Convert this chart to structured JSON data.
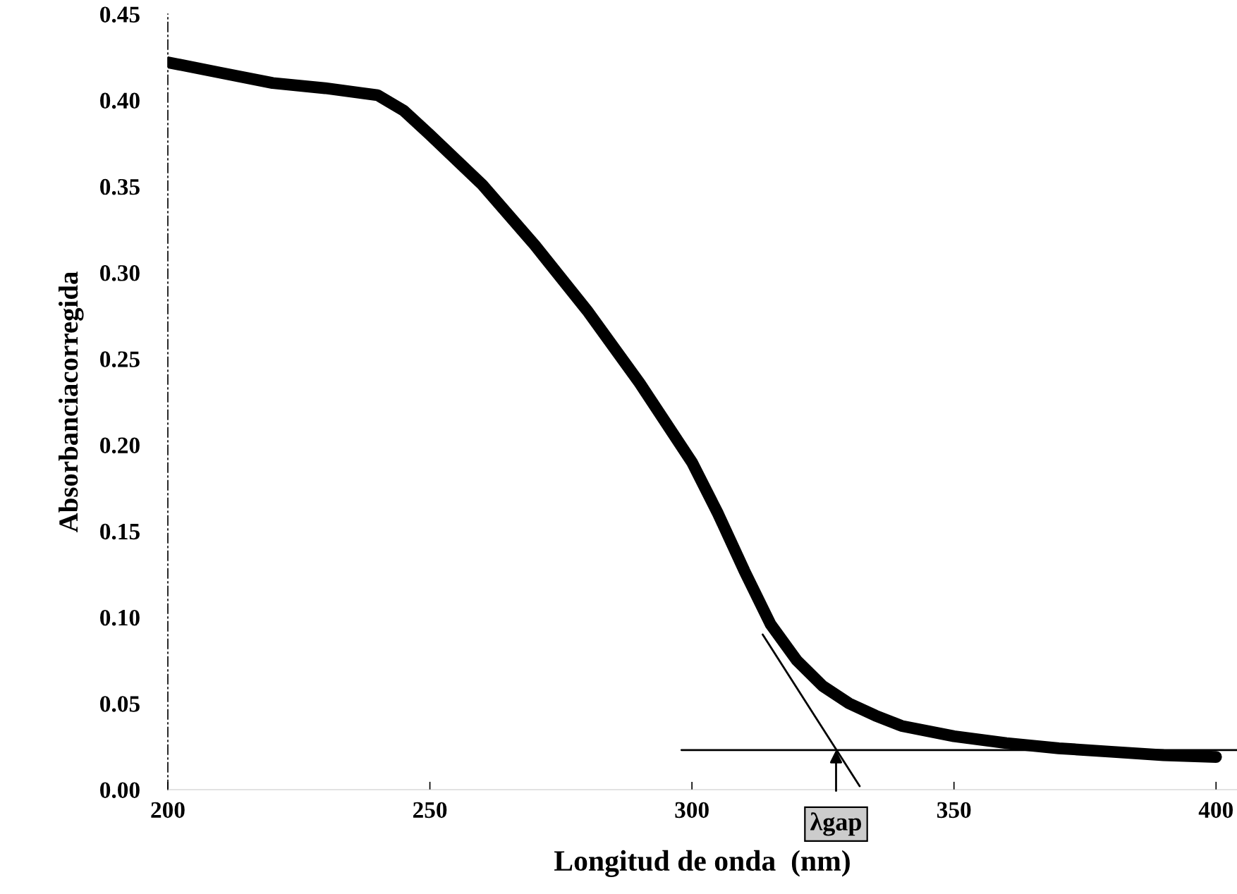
{
  "chart_data": {
    "type": "line",
    "xlabel": "Longitud de onda  (nm)",
    "ylabel": "Absorbanciacorregida",
    "xlim": [
      200,
      404
    ],
    "xticks": [
      200,
      250,
      300,
      350,
      400
    ],
    "ylim": [
      0,
      0.45
    ],
    "yticks": [
      {
        "value": 0,
        "label": "0.00"
      },
      {
        "value": 0.05,
        "label": "0.05"
      },
      {
        "value": 0.1,
        "label": "0.10"
      },
      {
        "value": 0.15,
        "label": "0.15"
      },
      {
        "value": 0.2,
        "label": "0.20"
      },
      {
        "value": 0.25,
        "label": "0.25"
      },
      {
        "value": 0.3,
        "label": "0.30"
      },
      {
        "value": 0.35,
        "label": "0.35"
      },
      {
        "value": 0.4,
        "label": "0.40"
      },
      {
        "value": 0.45,
        "label": "0.45"
      }
    ],
    "grid": false,
    "legend": false,
    "series": [
      {
        "color": "#000000",
        "x": [
          200,
          210,
          220,
          230,
          240,
          245,
          250,
          260,
          270,
          280,
          290,
          300,
          305,
          310,
          315,
          320,
          325,
          330,
          335,
          340,
          350,
          360,
          370,
          380,
          390,
          400
        ],
        "values": [
          0.422,
          0.416,
          0.41,
          0.407,
          0.403,
          0.394,
          0.38,
          0.351,
          0.316,
          0.278,
          0.236,
          0.19,
          0.16,
          0.127,
          0.096,
          0.075,
          0.06,
          0.05,
          0.043,
          0.037,
          0.031,
          0.027,
          0.024,
          0.022,
          0.02,
          0.019
        ]
      },
      {
        "color": "#000000",
        "x": [
          313.5,
          332
        ],
        "values": [
          0.09,
          0.002
        ]
      },
      {
        "color": "#000000",
        "x": [
          298,
          404
        ],
        "values": [
          0.023,
          0.023
        ]
      }
    ],
    "annotations": [
      {
        "text": "λgap",
        "x": 327.5,
        "y": 0.023
      }
    ]
  }
}
